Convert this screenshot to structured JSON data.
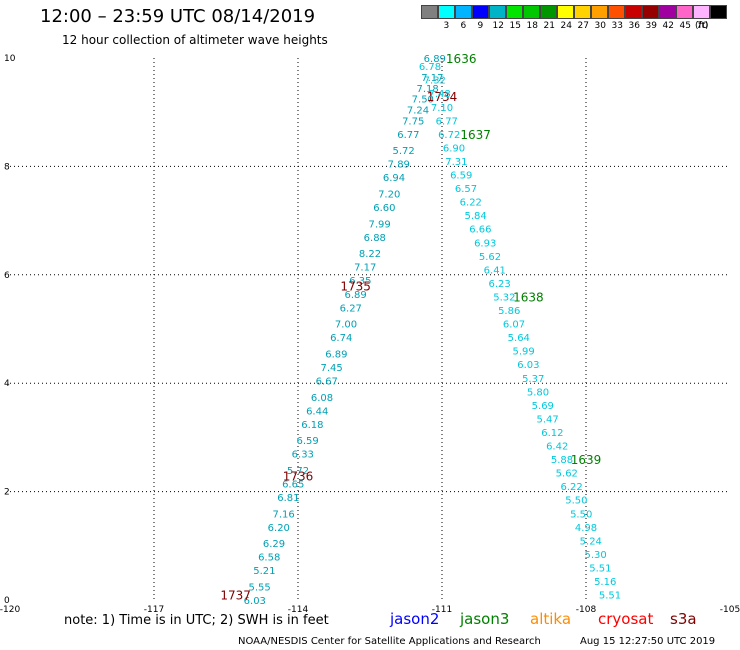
{
  "title": "12:00 – 23:59 UTC 08/14/2019",
  "subtitle": "12 hour collection of altimeter wave heights",
  "legend": {
    "unit": "(ft)",
    "bins": [
      {
        "label": "",
        "color": "#808080"
      },
      {
        "label": "3",
        "color": "#00ffff"
      },
      {
        "label": "6",
        "color": "#00b4ff"
      },
      {
        "label": "9",
        "color": "#0000ff"
      },
      {
        "label": "12",
        "color": "#00b4c8"
      },
      {
        "label": "15",
        "color": "#00e600"
      },
      {
        "label": "18",
        "color": "#00c800"
      },
      {
        "label": "21",
        "color": "#009600"
      },
      {
        "label": "24",
        "color": "#ffff00"
      },
      {
        "label": "27",
        "color": "#ffd200"
      },
      {
        "label": "30",
        "color": "#ffa000"
      },
      {
        "label": "33",
        "color": "#ff5000"
      },
      {
        "label": "36",
        "color": "#c80000"
      },
      {
        "label": "39",
        "color": "#960000"
      },
      {
        "label": "42",
        "color": "#a000a0"
      },
      {
        "label": "45",
        "color": "#ff64c8"
      },
      {
        "label": "70",
        "color": "#ffb4ff"
      },
      {
        "label": "",
        "color": "#000000"
      }
    ]
  },
  "axes": {
    "x_ticks": [
      "-120",
      "-117",
      "-114",
      "-111",
      "-108",
      "-105"
    ],
    "y_ticks": [
      "0",
      "2",
      "4",
      "6",
      "8",
      "10"
    ]
  },
  "tracks": [
    {
      "name": "cryosat",
      "color": "#00a0b4",
      "times": [
        {
          "label": "1734",
          "lon": -111.0,
          "lat": 9.3,
          "color": "#800000"
        },
        {
          "label": "1735",
          "lon": -112.8,
          "lat": 5.8,
          "color": "#800000"
        },
        {
          "label": "1736",
          "lon": -114.0,
          "lat": 2.3,
          "color": "#800000"
        },
        {
          "label": "1737",
          "lon": -115.3,
          "lat": 0.1,
          "color": "#800000"
        }
      ],
      "points": [
        {
          "lon": -111.15,
          "lat": 10.0,
          "v": "6.89"
        },
        {
          "lon": -111.2,
          "lat": 9.65,
          "v": "7.17"
        },
        {
          "lon": -111.3,
          "lat": 9.45,
          "v": "7.18"
        },
        {
          "lon": -111.4,
          "lat": 9.25,
          "v": "7.50"
        },
        {
          "lon": -111.5,
          "lat": 9.05,
          "v": "7.24"
        },
        {
          "lon": -111.6,
          "lat": 8.85,
          "v": "7.75"
        },
        {
          "lon": -111.7,
          "lat": 8.6,
          "v": "6.77"
        },
        {
          "lon": -111.8,
          "lat": 8.3,
          "v": "5.72"
        },
        {
          "lon": -111.9,
          "lat": 8.05,
          "v": "7.89"
        },
        {
          "lon": -112.0,
          "lat": 7.8,
          "v": "6.94"
        },
        {
          "lon": -112.1,
          "lat": 7.5,
          "v": "7.20"
        },
        {
          "lon": -112.2,
          "lat": 7.25,
          "v": "6.60"
        },
        {
          "lon": -112.3,
          "lat": 6.95,
          "v": "7.99"
        },
        {
          "lon": -112.4,
          "lat": 6.7,
          "v": "6.88"
        },
        {
          "lon": -112.5,
          "lat": 6.4,
          "v": "8.22"
        },
        {
          "lon": -112.6,
          "lat": 6.15,
          "v": "7.17"
        },
        {
          "lon": -112.7,
          "lat": 5.9,
          "v": "6.35"
        },
        {
          "lon": -112.8,
          "lat": 5.65,
          "v": "6.89"
        },
        {
          "lon": -112.9,
          "lat": 5.4,
          "v": "6.27"
        },
        {
          "lon": -113.0,
          "lat": 5.1,
          "v": "7.00"
        },
        {
          "lon": -113.1,
          "lat": 4.85,
          "v": "6.74"
        },
        {
          "lon": -113.2,
          "lat": 4.55,
          "v": "6.89"
        },
        {
          "lon": -113.3,
          "lat": 4.3,
          "v": "7.45"
        },
        {
          "lon": -113.4,
          "lat": 4.05,
          "v": "6.67"
        },
        {
          "lon": -113.5,
          "lat": 3.75,
          "v": "6.08"
        },
        {
          "lon": -113.6,
          "lat": 3.5,
          "v": "6.44"
        },
        {
          "lon": -113.7,
          "lat": 3.25,
          "v": "6.18"
        },
        {
          "lon": -113.8,
          "lat": 2.95,
          "v": "6.59"
        },
        {
          "lon": -113.9,
          "lat": 2.7,
          "v": "6.33"
        },
        {
          "lon": -114.0,
          "lat": 2.4,
          "v": "5.72"
        },
        {
          "lon": -114.1,
          "lat": 2.15,
          "v": "6.65"
        },
        {
          "lon": -114.2,
          "lat": 1.9,
          "v": "6.81"
        },
        {
          "lon": -114.3,
          "lat": 1.6,
          "v": "7.16"
        },
        {
          "lon": -114.4,
          "lat": 1.35,
          "v": "6.20"
        },
        {
          "lon": -114.5,
          "lat": 1.05,
          "v": "6.29"
        },
        {
          "lon": -114.6,
          "lat": 0.8,
          "v": "6.58"
        },
        {
          "lon": -114.7,
          "lat": 0.55,
          "v": "5.21"
        },
        {
          "lon": -114.8,
          "lat": 0.25,
          "v": "5.55"
        },
        {
          "lon": -114.9,
          "lat": 0.0,
          "v": "6.03"
        }
      ]
    },
    {
      "name": "jason3",
      "color": "#00c8dc",
      "times": [
        {
          "label": "1636",
          "lon": -110.6,
          "lat": 10.0,
          "color": "#008000"
        },
        {
          "label": "1637",
          "lon": -110.3,
          "lat": 8.6,
          "color": "#008000"
        },
        {
          "label": "1638",
          "lon": -109.2,
          "lat": 5.6,
          "color": "#008000"
        },
        {
          "label": "1639",
          "lon": -108.0,
          "lat": 2.6,
          "color": "#008000"
        }
      ],
      "points": [
        {
          "lon": -111.25,
          "lat": 9.85,
          "v": "6.78"
        },
        {
          "lon": -111.15,
          "lat": 9.6,
          "v": "7.32"
        },
        {
          "lon": -111.05,
          "lat": 9.35,
          "v": "7.48"
        },
        {
          "lon": -111.0,
          "lat": 9.1,
          "v": "7.10"
        },
        {
          "lon": -110.9,
          "lat": 8.85,
          "v": "6.77"
        },
        {
          "lon": -110.85,
          "lat": 8.6,
          "v": "6.72"
        },
        {
          "lon": -110.75,
          "lat": 8.35,
          "v": "6.90"
        },
        {
          "lon": -110.7,
          "lat": 8.1,
          "v": "7.31"
        },
        {
          "lon": -110.6,
          "lat": 7.85,
          "v": "6.59"
        },
        {
          "lon": -110.5,
          "lat": 7.6,
          "v": "6.57"
        },
        {
          "lon": -110.4,
          "lat": 7.35,
          "v": "6.22"
        },
        {
          "lon": -110.3,
          "lat": 7.1,
          "v": "5.84"
        },
        {
          "lon": -110.2,
          "lat": 6.85,
          "v": "6.66"
        },
        {
          "lon": -110.1,
          "lat": 6.6,
          "v": "6.93"
        },
        {
          "lon": -110.0,
          "lat": 6.35,
          "v": "5.62"
        },
        {
          "lon": -109.9,
          "lat": 6.1,
          "v": "6.41"
        },
        {
          "lon": -109.8,
          "lat": 5.85,
          "v": "6.23"
        },
        {
          "lon": -109.7,
          "lat": 5.6,
          "v": "5.32"
        },
        {
          "lon": -109.6,
          "lat": 5.35,
          "v": "5.86"
        },
        {
          "lon": -109.5,
          "lat": 5.1,
          "v": "6.07"
        },
        {
          "lon": -109.4,
          "lat": 4.85,
          "v": "5.64"
        },
        {
          "lon": -109.3,
          "lat": 4.6,
          "v": "5.99"
        },
        {
          "lon": -109.2,
          "lat": 4.35,
          "v": "6.03"
        },
        {
          "lon": -109.1,
          "lat": 4.1,
          "v": "5.37"
        },
        {
          "lon": -109.0,
          "lat": 3.85,
          "v": "5.80"
        },
        {
          "lon": -108.9,
          "lat": 3.6,
          "v": "5.69"
        },
        {
          "lon": -108.8,
          "lat": 3.35,
          "v": "5.47"
        },
        {
          "lon": -108.7,
          "lat": 3.1,
          "v": "6.12"
        },
        {
          "lon": -108.6,
          "lat": 2.85,
          "v": "6.42"
        },
        {
          "lon": -108.5,
          "lat": 2.6,
          "v": "5.88"
        },
        {
          "lon": -108.4,
          "lat": 2.35,
          "v": "5.62"
        },
        {
          "lon": -108.3,
          "lat": 2.1,
          "v": "6.22"
        },
        {
          "lon": -108.2,
          "lat": 1.85,
          "v": "5.50"
        },
        {
          "lon": -108.1,
          "lat": 1.6,
          "v": "5.50"
        },
        {
          "lon": -108.0,
          "lat": 1.35,
          "v": "4.98"
        },
        {
          "lon": -107.9,
          "lat": 1.1,
          "v": "5.24"
        },
        {
          "lon": -107.8,
          "lat": 0.85,
          "v": "5.30"
        },
        {
          "lon": -107.7,
          "lat": 0.6,
          "v": "5.51"
        },
        {
          "lon": -107.6,
          "lat": 0.35,
          "v": "5.16"
        },
        {
          "lon": -107.5,
          "lat": 0.1,
          "v": "5.51"
        }
      ]
    }
  ],
  "note": "note:  1) Time is in UTC;  2) SWH is in feet",
  "satellites": [
    {
      "name": "jason2",
      "color": "#0000ff"
    },
    {
      "name": "jason3",
      "color": "#008000"
    },
    {
      "name": "altika",
      "color": "#ff8c00"
    },
    {
      "name": "cryosat",
      "color": "#ff0000"
    },
    {
      "name": "s3a",
      "color": "#800000"
    }
  ],
  "footer_left": "NOAA/NESDIS Center for Satellite Applications and Research",
  "footer_right": "Aug 15 12:27:50 UTC 2019"
}
